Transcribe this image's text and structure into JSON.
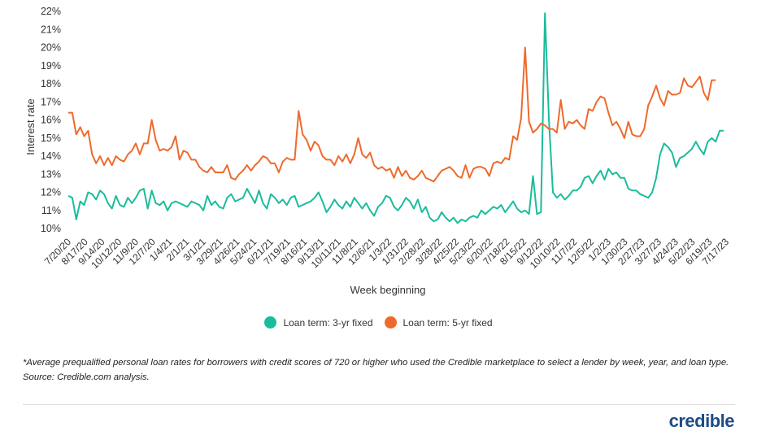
{
  "chart_data": {
    "type": "line",
    "title": "",
    "xlabel": "Week beginning",
    "ylabel": "Interest rate",
    "ylim": [
      9.8,
      22.2
    ],
    "yticks": [
      "10%",
      "11%",
      "12%",
      "13%",
      "14%",
      "15%",
      "16%",
      "17%",
      "18%",
      "19%",
      "20%",
      "21%",
      "22%"
    ],
    "ytick_values": [
      10,
      11,
      12,
      13,
      14,
      15,
      16,
      17,
      18,
      19,
      20,
      21,
      22
    ],
    "x_tick_labels": [
      "7/20/20",
      "8/17/20",
      "9/14/20",
      "10/12/20",
      "11/9/20",
      "12/7/20",
      "1/4/21",
      "2/1/21",
      "3/1/21",
      "3/29/21",
      "4/26/21",
      "5/24/21",
      "6/21/21",
      "7/19/21",
      "8/16/21",
      "9/13/21",
      "10/11/21",
      "11/8/21",
      "12/6/21",
      "1/3/22",
      "1/31/22",
      "2/28/22",
      "3/28/22",
      "4/25/22",
      "5/23/22",
      "6/20/22",
      "7/18/22",
      "8/15/22",
      "9/12/22",
      "10/10/22",
      "11/7/22",
      "12/5/22",
      "1/2/23",
      "1/30/23",
      "2/27/23",
      "3/27/23",
      "4/24/23",
      "5/22/23",
      "6/19/23",
      "7/17/23"
    ],
    "grid": false,
    "legend_position": "bottom",
    "series": [
      {
        "name": "Loan term: 3-yr fixed",
        "color": "#1abc9c",
        "values": [
          11.8,
          11.7,
          10.5,
          11.5,
          11.3,
          12,
          11.9,
          11.6,
          12.1,
          11.9,
          11.4,
          11.1,
          11.8,
          11.3,
          11.2,
          11.7,
          11.4,
          11.7,
          12.1,
          12.2,
          11.1,
          12.1,
          11.4,
          11.3,
          11.5,
          11,
          11.4,
          11.5,
          11.4,
          11.3,
          11.2,
          11.5,
          11.4,
          11.3,
          11,
          11.8,
          11.3,
          11.5,
          11.2,
          11.1,
          11.7,
          11.9,
          11.5,
          11.6,
          11.7,
          12.2,
          11.8,
          11.4,
          12.1,
          11.4,
          11.1,
          11.9,
          11.7,
          11.4,
          11.6,
          11.3,
          11.7,
          11.8,
          11.2,
          11.3,
          11.4,
          11.5,
          11.7,
          12,
          11.5,
          10.9,
          11.2,
          11.6,
          11.3,
          11.1,
          11.5,
          11.2,
          11.7,
          11.4,
          11.1,
          11.4,
          11,
          10.7,
          11.2,
          11.4,
          11.8,
          11.7,
          11.2,
          11,
          11.3,
          11.7,
          11.5,
          11.1,
          11.6,
          10.9,
          11.2,
          10.6,
          10.4,
          10.5,
          10.9,
          10.6,
          10.4,
          10.6,
          10.3,
          10.5,
          10.4,
          10.6,
          10.7,
          10.6,
          11,
          10.8,
          11,
          11.2,
          11.1,
          11.3,
          10.9,
          11.2,
          11.5,
          11.1,
          10.9,
          11,
          10.8,
          12.9,
          10.8,
          10.9,
          21.9,
          16,
          12,
          11.7,
          11.9,
          11.6,
          11.8,
          12.1,
          12.1,
          12.3,
          12.8,
          12.9,
          12.5,
          12.9,
          13.2,
          12.7,
          13.3,
          13,
          13.1,
          12.8,
          12.8,
          12.2,
          12.1,
          12.1,
          11.9,
          11.8,
          11.7,
          12,
          12.8,
          14.1,
          14.7,
          14.5,
          14.2,
          13.4,
          13.9,
          14,
          14.2,
          14.4,
          14.8,
          14.4,
          14.1,
          14.8,
          15,
          14.8,
          15.4,
          15.4
        ]
      },
      {
        "name": "Loan term: 5-yr fixed",
        "color": "#ee6a2c",
        "values": [
          16.4,
          16.4,
          15.2,
          15.6,
          15.1,
          15.4,
          14.1,
          13.6,
          14,
          13.5,
          13.9,
          13.5,
          14,
          13.8,
          13.7,
          14.1,
          14.3,
          14.7,
          14.1,
          14.7,
          14.7,
          16,
          14.9,
          14.3,
          14.4,
          14.3,
          14.5,
          15.1,
          13.8,
          14.3,
          14.2,
          13.8,
          13.8,
          13.4,
          13.2,
          13.1,
          13.4,
          13.1,
          13.1,
          13.1,
          13.5,
          12.8,
          12.7,
          13,
          13.2,
          13.5,
          13.2,
          13.5,
          13.7,
          14,
          13.9,
          13.6,
          13.6,
          13.1,
          13.7,
          13.9,
          13.8,
          13.8,
          16.5,
          15.2,
          14.9,
          14.3,
          14.8,
          14.6,
          14,
          13.8,
          13.8,
          13.5,
          14,
          13.7,
          14.1,
          13.6,
          14.1,
          15,
          14.1,
          13.9,
          14.2,
          13.5,
          13.3,
          13.4,
          13.2,
          13.3,
          12.8,
          13.4,
          12.9,
          13.2,
          12.8,
          12.7,
          12.9,
          13.2,
          12.8,
          12.7,
          12.6,
          12.9,
          13.2,
          13.3,
          13.4,
          13.2,
          12.9,
          12.8,
          13.5,
          12.8,
          13.3,
          13.4,
          13.4,
          13.3,
          12.9,
          13.6,
          13.7,
          13.6,
          13.9,
          13.8,
          15.1,
          14.9,
          16.1,
          20,
          15.9,
          15.3,
          15.5,
          15.8,
          15.7,
          15.5,
          15.5,
          15.3,
          17.1,
          15.5,
          15.9,
          15.8,
          16,
          15.7,
          15.5,
          16.6,
          16.5,
          17,
          17.3,
          17.2,
          16.4,
          15.7,
          15.9,
          15.5,
          15,
          15.9,
          15.2,
          15.1,
          15.1,
          15.5,
          16.8,
          17.3,
          17.9,
          17.2,
          16.8,
          17.6,
          17.4,
          17.4,
          17.5,
          18.3,
          17.9,
          17.8,
          18.1,
          18.4,
          17.5,
          17.1,
          18.2,
          18.2
        ]
      }
    ]
  },
  "legend": {
    "items": [
      {
        "label": "Loan term: 3-yr fixed",
        "color": "#1abc9c"
      },
      {
        "label": "Loan term: 5-yr fixed",
        "color": "#ee6a2c"
      }
    ]
  },
  "footnote": "*Average prequalified personal loan rates for borrowers with credit scores of 720 or higher who used the Credible marketplace to select a lender by week, year, and loan type. Source: Credible.com analysis.",
  "logo": "credible"
}
